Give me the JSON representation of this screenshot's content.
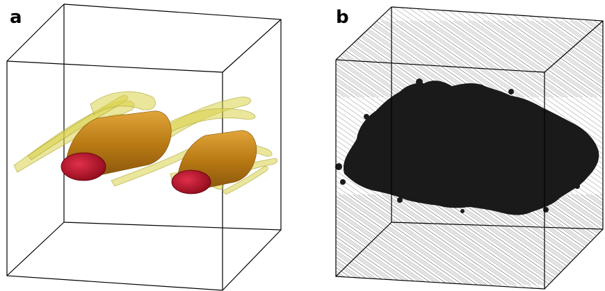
{
  "panels": [
    {
      "label": "a",
      "content": "vortex-isosurfaces"
    },
    {
      "label": "b",
      "content": "particle-cloud"
    }
  ],
  "colors": {
    "box_edge": "#000000",
    "core_red": "#c0102a",
    "tube_gold": "#c98a1c",
    "sheet_yellow": "#d8d24a",
    "cloud_dark": "#1a1a1a",
    "hatch": "#333333"
  }
}
